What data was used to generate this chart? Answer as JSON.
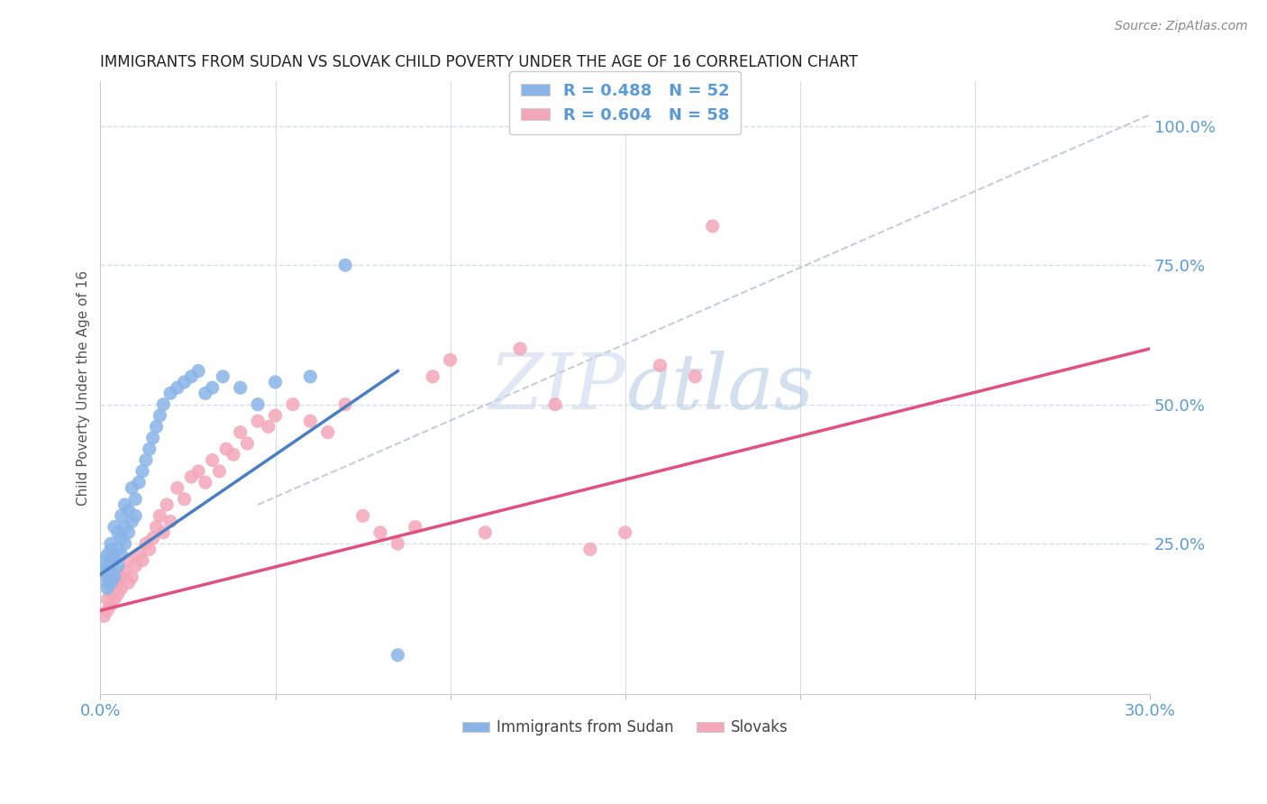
{
  "title": "IMMIGRANTS FROM SUDAN VS SLOVAK CHILD POVERTY UNDER THE AGE OF 16 CORRELATION CHART",
  "source": "Source: ZipAtlas.com",
  "ylabel": "Child Poverty Under the Age of 16",
  "xlim": [
    0.0,
    0.3
  ],
  "ylim": [
    -0.02,
    1.08
  ],
  "legend_r1": "R = 0.488",
  "legend_n1": "N = 52",
  "legend_r2": "R = 0.604",
  "legend_n2": "N = 58",
  "blue_color": "#8ab4e8",
  "pink_color": "#f4a7b9",
  "trend_blue_color": "#4a7fc1",
  "trend_pink_color": "#e05080",
  "trend_gray_color": "#b0b8c8",
  "axis_color": "#5b9bd5",
  "background_color": "#ffffff",
  "grid_color": "#d8dde8",
  "blue_scatter_x": [
    0.001,
    0.001,
    0.002,
    0.002,
    0.002,
    0.002,
    0.002,
    0.003,
    0.003,
    0.003,
    0.003,
    0.003,
    0.004,
    0.004,
    0.004,
    0.005,
    0.005,
    0.005,
    0.006,
    0.006,
    0.006,
    0.007,
    0.007,
    0.007,
    0.008,
    0.008,
    0.009,
    0.009,
    0.01,
    0.01,
    0.011,
    0.012,
    0.013,
    0.014,
    0.015,
    0.016,
    0.017,
    0.018,
    0.02,
    0.022,
    0.024,
    0.026,
    0.028,
    0.03,
    0.032,
    0.035,
    0.04,
    0.045,
    0.05,
    0.06,
    0.07,
    0.085
  ],
  "blue_scatter_y": [
    0.2,
    0.22,
    0.18,
    0.21,
    0.23,
    0.19,
    0.17,
    0.24,
    0.2,
    0.22,
    0.18,
    0.25,
    0.19,
    0.22,
    0.28,
    0.21,
    0.24,
    0.27,
    0.23,
    0.26,
    0.3,
    0.25,
    0.28,
    0.32,
    0.27,
    0.31,
    0.29,
    0.35,
    0.3,
    0.33,
    0.36,
    0.38,
    0.4,
    0.42,
    0.44,
    0.46,
    0.48,
    0.5,
    0.52,
    0.53,
    0.54,
    0.55,
    0.56,
    0.52,
    0.53,
    0.55,
    0.53,
    0.5,
    0.54,
    0.55,
    0.75,
    0.05
  ],
  "pink_scatter_x": [
    0.001,
    0.002,
    0.002,
    0.003,
    0.003,
    0.004,
    0.004,
    0.005,
    0.005,
    0.006,
    0.006,
    0.007,
    0.008,
    0.008,
    0.009,
    0.01,
    0.011,
    0.012,
    0.013,
    0.014,
    0.015,
    0.016,
    0.017,
    0.018,
    0.019,
    0.02,
    0.022,
    0.024,
    0.026,
    0.028,
    0.03,
    0.032,
    0.034,
    0.036,
    0.038,
    0.04,
    0.042,
    0.045,
    0.048,
    0.05,
    0.055,
    0.06,
    0.065,
    0.07,
    0.075,
    0.08,
    0.085,
    0.09,
    0.095,
    0.1,
    0.11,
    0.12,
    0.13,
    0.14,
    0.15,
    0.16,
    0.17,
    0.175
  ],
  "pink_scatter_y": [
    0.12,
    0.15,
    0.13,
    0.16,
    0.14,
    0.17,
    0.15,
    0.18,
    0.16,
    0.19,
    0.17,
    0.2,
    0.18,
    0.22,
    0.19,
    0.21,
    0.23,
    0.22,
    0.25,
    0.24,
    0.26,
    0.28,
    0.3,
    0.27,
    0.32,
    0.29,
    0.35,
    0.33,
    0.37,
    0.38,
    0.36,
    0.4,
    0.38,
    0.42,
    0.41,
    0.45,
    0.43,
    0.47,
    0.46,
    0.48,
    0.5,
    0.47,
    0.45,
    0.5,
    0.3,
    0.27,
    0.25,
    0.28,
    0.55,
    0.58,
    0.27,
    0.6,
    0.5,
    0.24,
    0.27,
    0.57,
    0.55,
    0.82
  ],
  "blue_trend_x0": 0.0,
  "blue_trend_y0": 0.195,
  "blue_trend_x1": 0.085,
  "blue_trend_y1": 0.56,
  "pink_trend_x0": 0.0,
  "pink_trend_y0": 0.13,
  "pink_trend_x1": 0.3,
  "pink_trend_y1": 0.6,
  "gray_trend_x0": 0.045,
  "gray_trend_y0": 0.32,
  "gray_trend_x1": 0.3,
  "gray_trend_y1": 1.02
}
